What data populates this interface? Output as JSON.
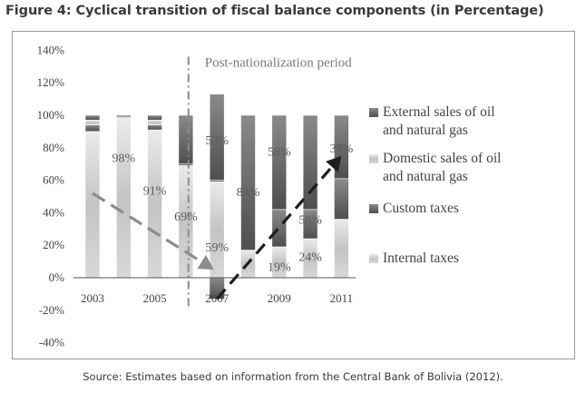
{
  "figure": {
    "title": "Figure 4: Cyclical transition of fiscal balance components (in Percentage)",
    "source": "Source: Estimates based on information from the Central Bank of Bolivia (2012).",
    "annotation": "Post-nationalization period"
  },
  "chart_data": {
    "type": "bar",
    "stacked": true,
    "title": "Figure 4: Cyclical transition of fiscal balance components (in Percentage)",
    "xlabel": "",
    "ylabel": "",
    "ylim": [
      -40,
      140
    ],
    "yticks": [
      "-40%",
      "-20%",
      "0%",
      "20%",
      "40%",
      "60%",
      "80%",
      "100%",
      "120%",
      "140%"
    ],
    "ytick_values": [
      -40,
      -20,
      0,
      20,
      40,
      60,
      80,
      100,
      120,
      140
    ],
    "categories": [
      "2003",
      "2004",
      "2005",
      "2006",
      "2007",
      "2008",
      "2009",
      "2010",
      "2011"
    ],
    "x_tick_labels": [
      "2003",
      "",
      "2005",
      "",
      "2007",
      "",
      "2009",
      "",
      "2011"
    ],
    "series": [
      {
        "name": "Internal taxes",
        "color": "#c8c8c8",
        "values": [
          90,
          98,
          91,
          69,
          59,
          17,
          19,
          24,
          36
        ]
      },
      {
        "name": "Custom taxes",
        "color": "#6e6e6e",
        "values": [
          4,
          0,
          3,
          1,
          1,
          0,
          23,
          18,
          25
        ]
      },
      {
        "name": "Domestic sales of oil and natural gas",
        "color": "#b3b3b3",
        "values": [
          3,
          1,
          3,
          0,
          0,
          0,
          0,
          0,
          0
        ]
      },
      {
        "name": "External sales of oil and natural gas",
        "color": "#5a5a5a",
        "values": [
          3,
          1,
          3,
          30,
          53,
          83,
          58,
          58,
          39
        ]
      }
    ],
    "negative_series": [
      {
        "name": "Domestic sales of oil and natural gas",
        "values": [
          0,
          0,
          0,
          0,
          -13,
          0,
          0,
          0,
          0
        ]
      }
    ],
    "data_labels": [
      {
        "text": "98%",
        "x": "2004",
        "y": 74
      },
      {
        "text": "91%",
        "x": "2005",
        "y": 54
      },
      {
        "text": "69%",
        "x": "2006",
        "y": 38
      },
      {
        "text": "53%",
        "x": "2007",
        "y": 85
      },
      {
        "text": "59%",
        "x": "2007",
        "y": 19
      },
      {
        "text": "83%",
        "x": "2008",
        "y": 53
      },
      {
        "text": "58%",
        "x": "2009",
        "y": 78
      },
      {
        "text": "19%",
        "x": "2009",
        "y": 7
      },
      {
        "text": "58%",
        "x": "2010",
        "y": 36
      },
      {
        "text": "24%",
        "x": "2010",
        "y": 13
      },
      {
        "text": "39%",
        "x": "2011",
        "y": 80
      }
    ],
    "divider_between": [
      "2005",
      "2006"
    ],
    "trend_arrows": [
      {
        "style": "gray-dashed",
        "from": [
          "2003",
          52
        ],
        "to": [
          "2006.9",
          5
        ]
      },
      {
        "style": "black-dashed",
        "from": [
          "2007",
          -13
        ],
        "to": [
          "2011",
          75
        ]
      }
    ],
    "grid": false,
    "legend_position": "right",
    "legend": [
      {
        "label": "External sales of oil and natural gas",
        "color": "#5a5a5a"
      },
      {
        "label": "Domestic sales of oil and natural gas",
        "color": "#b3b3b3"
      },
      {
        "label": "Custom taxes",
        "color": "#6e6e6e"
      },
      {
        "label": "Internal taxes",
        "color": "#c8c8c8"
      }
    ]
  }
}
